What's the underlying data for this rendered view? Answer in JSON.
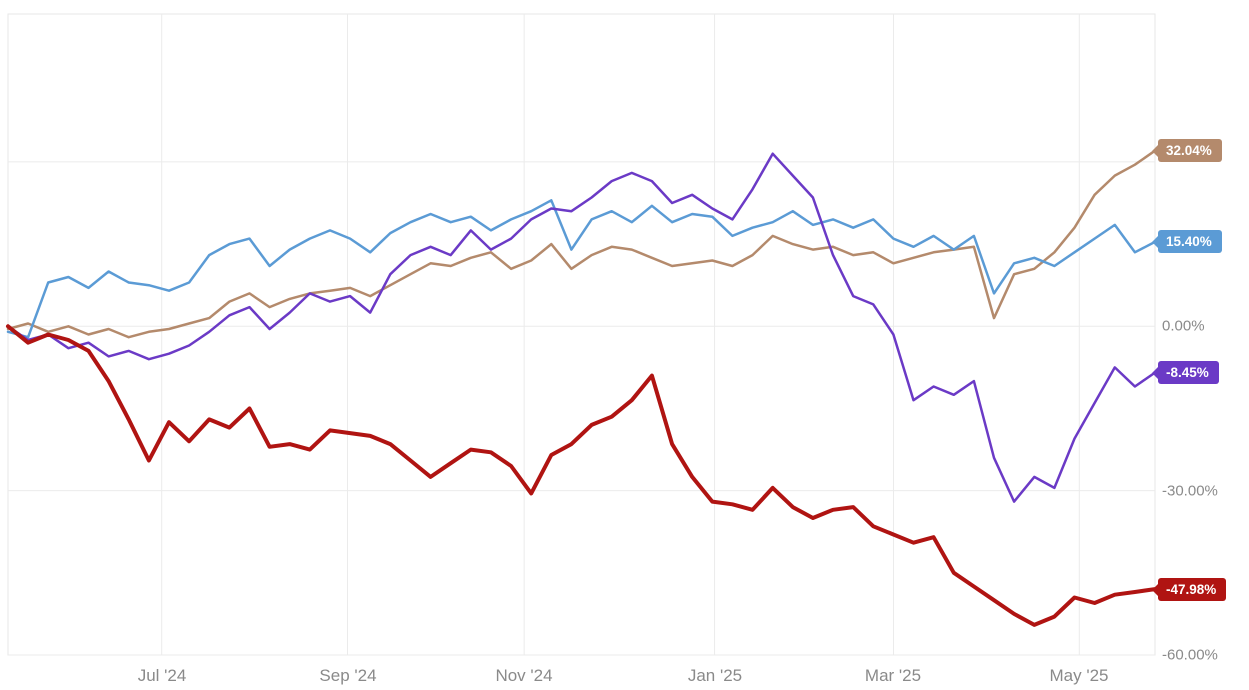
{
  "chart_data": {
    "type": "line",
    "title": "",
    "xlabel": "",
    "ylabel": "",
    "legend_position": "right-end-labels",
    "grid": true,
    "ylim": [
      -60,
      57
    ],
    "grid_y_values": [
      30,
      0,
      -30,
      -60
    ],
    "x_ticks": [
      "Jul '24",
      "Sep '24",
      "Nov '24",
      "Jan '25",
      "Mar '25",
      "May '25"
    ],
    "y_ticks": [
      {
        "label": "0.00%",
        "value": 0
      },
      {
        "label": "-30.00%",
        "value": -30
      },
      {
        "label": "-60.00%",
        "value": -60
      }
    ],
    "series": [
      {
        "name": "series-tan",
        "color": "#b48a6c",
        "stroke_width": 2.5,
        "end_label": "32.04%",
        "end_value": 32.04,
        "values": [
          -0.5,
          0.5,
          -1,
          0,
          -1.5,
          -0.5,
          -2,
          -1,
          -0.5,
          0.5,
          1.5,
          4.5,
          6,
          3.5,
          5,
          6,
          6.5,
          7,
          5.5,
          7.5,
          9.5,
          11.5,
          11,
          12.5,
          13.5,
          10.5,
          12,
          15,
          10.5,
          13,
          14.5,
          14,
          12.5,
          11,
          11.5,
          12,
          11,
          13,
          16.5,
          15,
          14,
          14.5,
          13,
          13.5,
          11.5,
          12.5,
          13.5,
          14,
          14.5,
          1.5,
          9.5,
          10.5,
          13.5,
          18,
          24,
          27.5,
          29.5,
          32.04
        ]
      },
      {
        "name": "series-blue",
        "color": "#5b9bd5",
        "stroke_width": 2.5,
        "end_label": "15.40%",
        "end_value": 15.4,
        "values": [
          -1,
          -2,
          8,
          9,
          7,
          10,
          8,
          7.5,
          6.5,
          8,
          13,
          15,
          16,
          11,
          14,
          16,
          17.5,
          16,
          13.5,
          17,
          19,
          20.5,
          19,
          20,
          17.5,
          19.5,
          21,
          23,
          14,
          19.5,
          21,
          19,
          22,
          19,
          20.5,
          20,
          16.5,
          18,
          19,
          21,
          18.5,
          19.5,
          18,
          19.5,
          16,
          14.5,
          16.5,
          14,
          16.5,
          6,
          11.5,
          12.5,
          11,
          13.5,
          16,
          18.5,
          13.5,
          15.4
        ]
      },
      {
        "name": "series-purple",
        "color": "#6b3ac6",
        "stroke_width": 2.5,
        "end_label": "-8.45%",
        "end_value": -8.45,
        "values": [
          0,
          -2.5,
          -1.5,
          -4,
          -3,
          -5.5,
          -4.5,
          -6,
          -5,
          -3.5,
          -1,
          2,
          3.5,
          -0.5,
          2.5,
          6,
          4.5,
          5.5,
          2.5,
          9.5,
          13,
          14.5,
          13,
          17.5,
          14,
          16,
          19.5,
          21.5,
          21,
          23.5,
          26.5,
          28,
          26.5,
          22.5,
          24,
          21.5,
          19.5,
          25,
          31.5,
          27.5,
          23.5,
          13,
          5.5,
          4,
          -1.5,
          -13.5,
          -11,
          -12.5,
          -10,
          -24,
          -32,
          -27.5,
          -29.5,
          -20.5,
          -14,
          -7.5,
          -11,
          -8.45
        ]
      },
      {
        "name": "series-red",
        "color": "#b01412",
        "stroke_width": 4,
        "end_label": "-47.98%",
        "end_value": -47.98,
        "values": [
          0,
          -3,
          -1.5,
          -2.5,
          -4.5,
          -10,
          -17,
          -24.5,
          -17.5,
          -21,
          -17,
          -18.5,
          -15,
          -22,
          -21.5,
          -22.5,
          -19,
          -19.5,
          -20,
          -21.5,
          -24.5,
          -27.5,
          -25,
          -22.5,
          -23,
          -25.5,
          -30.5,
          -23.5,
          -21.5,
          -18,
          -16.5,
          -13.5,
          -9,
          -21.5,
          -27.5,
          -32,
          -32.5,
          -33.5,
          -29.5,
          -33,
          -35,
          -33.5,
          -33,
          -36.5,
          -38,
          -39.5,
          -38.5,
          -45,
          -47.5,
          -50,
          -52.5,
          -54.5,
          -53,
          -49.5,
          -50.5,
          -49,
          -48.5,
          -47.98
        ]
      }
    ],
    "colors": {
      "grid_line": "#ebebeb",
      "frame": "#e7e7e7",
      "axis_text": "#8a8a8a",
      "background": "#ffffff"
    }
  }
}
